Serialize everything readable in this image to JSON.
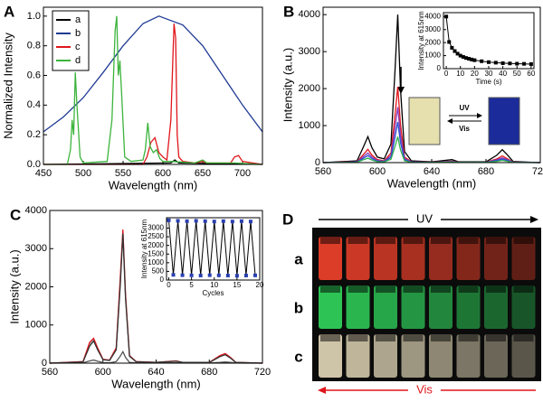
{
  "chart_data": [
    {
      "type": "line",
      "label": "A",
      "xlabel": "Wavelength (nm)",
      "ylabel": "Normalized Intensity",
      "xlim": [
        450,
        725
      ],
      "ylim": [
        0,
        1.06
      ],
      "xticks": [
        450,
        500,
        550,
        600,
        650,
        700
      ],
      "yticks": [
        {
          "value": 0,
          "label": "0.0"
        },
        {
          "value": 0.2,
          "label": "0.2"
        },
        {
          "value": 0.4,
          "label": "0.4"
        },
        {
          "value": 0.6,
          "label": "0.6"
        },
        {
          "value": 0.8,
          "label": "0.8"
        },
        {
          "value": 1,
          "label": "1.0"
        }
      ],
      "legend": "upper left",
      "series": [
        {
          "name": "a",
          "color": "#000000",
          "x": [
            450,
            610,
            615,
            620,
            725
          ],
          "values": [
            0,
            0.01,
            0.03,
            0.01,
            0
          ]
        },
        {
          "name": "b",
          "color": "#1f3a93",
          "x": [
            450,
            475,
            500,
            525,
            550,
            575,
            595,
            625,
            650,
            675,
            700,
            725
          ],
          "values": [
            0.22,
            0.32,
            0.45,
            0.62,
            0.8,
            0.95,
            1.0,
            0.94,
            0.8,
            0.6,
            0.4,
            0.22
          ]
        },
        {
          "name": "c",
          "color": "#e0161c",
          "x": [
            450,
            575,
            580,
            585,
            590,
            595,
            600,
            605,
            610,
            614,
            616,
            618,
            620,
            625,
            640,
            650,
            655,
            685,
            690,
            695,
            700,
            725
          ],
          "values": [
            0,
            0,
            0.05,
            0.15,
            0.18,
            0.08,
            0.05,
            0.03,
            0.3,
            0.95,
            0.85,
            0.2,
            0.05,
            0.02,
            0.01,
            0.02,
            0.01,
            0.01,
            0.05,
            0.06,
            0.02,
            0
          ]
        },
        {
          "name": "d",
          "color": "#3cb43c",
          "x": [
            450,
            480,
            484,
            486,
            488,
            490,
            492,
            496,
            500,
            530,
            536,
            540,
            542,
            544,
            546,
            548,
            552,
            560,
            575,
            578,
            581,
            584,
            588,
            592,
            596,
            600,
            610,
            640,
            650,
            655,
            690,
            725
          ],
          "values": [
            0,
            0,
            0.1,
            0.3,
            0.2,
            0.62,
            0.4,
            0.05,
            0.01,
            0.02,
            0.3,
            0.9,
            1.0,
            0.6,
            0.7,
            0.5,
            0.05,
            0.02,
            0.03,
            0.1,
            0.28,
            0.12,
            0.08,
            0.1,
            0.04,
            0.02,
            0.02,
            0.01,
            0.03,
            0.01,
            0.01,
            0
          ]
        }
      ]
    },
    {
      "type": "line",
      "label": "B",
      "xlabel": "Wavelength (nm)",
      "ylabel": "Intensity (a.u.)",
      "xlim": [
        560,
        720
      ],
      "ylim": [
        0,
        4200
      ],
      "xticks": [
        560,
        600,
        640,
        680,
        720
      ],
      "yticks": [
        0,
        1000,
        2000,
        3000,
        4000
      ],
      "x": [
        560,
        585,
        590,
        593,
        596,
        600,
        605,
        610,
        613,
        615,
        617,
        620,
        625,
        640,
        655,
        660,
        680,
        688,
        692,
        696,
        700,
        720
      ],
      "series": [
        {
          "color": "#000000",
          "values": [
            0,
            50,
            450,
            700,
            400,
            150,
            100,
            500,
            2500,
            4000,
            2000,
            300,
            50,
            20,
            80,
            20,
            20,
            200,
            350,
            200,
            30,
            0
          ]
        },
        {
          "color": "#e0161c",
          "values": [
            0,
            25,
            230,
            360,
            200,
            80,
            50,
            260,
            1280,
            2050,
            1030,
            150,
            25,
            10,
            40,
            10,
            10,
            100,
            180,
            100,
            15,
            0
          ]
        },
        {
          "color": "#8a3ab9",
          "values": [
            0,
            20,
            170,
            260,
            150,
            60,
            40,
            190,
            940,
            1500,
            750,
            110,
            20,
            10,
            30,
            10,
            10,
            75,
            130,
            75,
            10,
            0
          ]
        },
        {
          "color": "#2a4fd0",
          "values": [
            0,
            15,
            125,
            190,
            110,
            40,
            30,
            140,
            690,
            1100,
            550,
            80,
            15,
            5,
            20,
            5,
            5,
            55,
            95,
            55,
            10,
            0
          ]
        },
        {
          "color": "#2fae4a",
          "values": [
            0,
            10,
            80,
            120,
            70,
            25,
            20,
            90,
            440,
            700,
            350,
            50,
            10,
            5,
            15,
            5,
            5,
            35,
            60,
            35,
            5,
            0
          ]
        }
      ],
      "inset": {
        "type": "line",
        "xlabel": "Time (s)",
        "ylabel": "Intensity at 615nm",
        "xlim": [
          -2,
          62
        ],
        "ylim": [
          0,
          4300
        ],
        "xticks": [
          0,
          10,
          20,
          30,
          40,
          50,
          60
        ],
        "yticks": [
          0,
          1000,
          2000,
          3000,
          4000
        ],
        "markers": true,
        "x": [
          0,
          2,
          4,
          6,
          8,
          10,
          12,
          14,
          16,
          18,
          20,
          25,
          30,
          35,
          40,
          45,
          50,
          55,
          60
        ],
        "series": [
          {
            "color": "#000000",
            "values": [
              4000,
              2050,
              1600,
              1350,
              1150,
              1000,
              900,
              820,
              760,
              700,
              650,
              570,
              500,
              460,
              420,
              400,
              380,
              370,
              350
            ]
          }
        ]
      },
      "photo": {
        "forward": "UV",
        "back": "Vis"
      }
    },
    {
      "type": "line",
      "label": "C",
      "xlabel": "Wavelength (nm)",
      "ylabel": "Intensity (a.u.)",
      "xlim": [
        560,
        720
      ],
      "ylim": [
        0,
        4000
      ],
      "xticks": [
        560,
        600,
        640,
        680,
        720
      ],
      "yticks": [
        0,
        1000,
        2000,
        3000,
        4000
      ],
      "x": [
        560,
        585,
        590,
        593,
        596,
        600,
        605,
        610,
        613,
        615,
        617,
        620,
        625,
        640,
        655,
        660,
        680,
        688,
        692,
        696,
        700,
        720
      ],
      "series": [
        {
          "color": "#aaaaaa",
          "values": [
            0,
            40,
            500,
            620,
            380,
            100,
            80,
            380,
            2100,
            3450,
            1750,
            200,
            40,
            20,
            60,
            20,
            20,
            180,
            230,
            140,
            20,
            0
          ]
        },
        {
          "color": "#e0161c",
          "values": [
            0,
            40,
            550,
            650,
            400,
            100,
            80,
            400,
            2200,
            3500,
            1800,
            200,
            40,
            20,
            60,
            20,
            20,
            200,
            250,
            150,
            20,
            0
          ]
        },
        {
          "color": "#333333",
          "values": [
            0,
            30,
            450,
            580,
            350,
            90,
            70,
            350,
            2000,
            3400,
            1700,
            180,
            35,
            20,
            50,
            20,
            20,
            170,
            220,
            130,
            20,
            0
          ]
        },
        {
          "color": "#555555",
          "values": [
            0,
            10,
            60,
            80,
            50,
            15,
            10,
            40,
            180,
            300,
            150,
            20,
            10,
            5,
            10,
            5,
            5,
            20,
            30,
            20,
            5,
            0
          ]
        }
      ],
      "inset": {
        "type": "line",
        "xlabel": "Cycles",
        "ylabel": "Intensity at 615nm",
        "xlim": [
          -0.5,
          20
        ],
        "ylim": [
          0,
          3600
        ],
        "xticks": [
          0,
          5,
          10,
          15,
          20
        ],
        "yticks": [
          0,
          500,
          1000,
          1500,
          2000,
          2500,
          3000
        ],
        "markers": true,
        "marker_color": "#2a3fb0",
        "x": [
          0,
          1,
          2,
          3,
          4,
          5,
          6,
          7,
          8,
          9,
          10,
          11,
          12,
          13,
          14,
          15,
          16,
          17,
          18,
          19
        ],
        "series": [
          {
            "color": "#000000",
            "values": [
              3450,
              300,
              3420,
              280,
              3400,
              270,
              3420,
              260,
              3400,
              280,
              3380,
              270,
              3400,
              260,
              3380,
              250,
              3400,
              260,
              3380,
              270
            ]
          }
        ]
      }
    },
    {
      "type": "photo",
      "label": "D",
      "forward": "UV",
      "back": "Vis",
      "rows": [
        "a",
        "b",
        "c"
      ]
    }
  ]
}
